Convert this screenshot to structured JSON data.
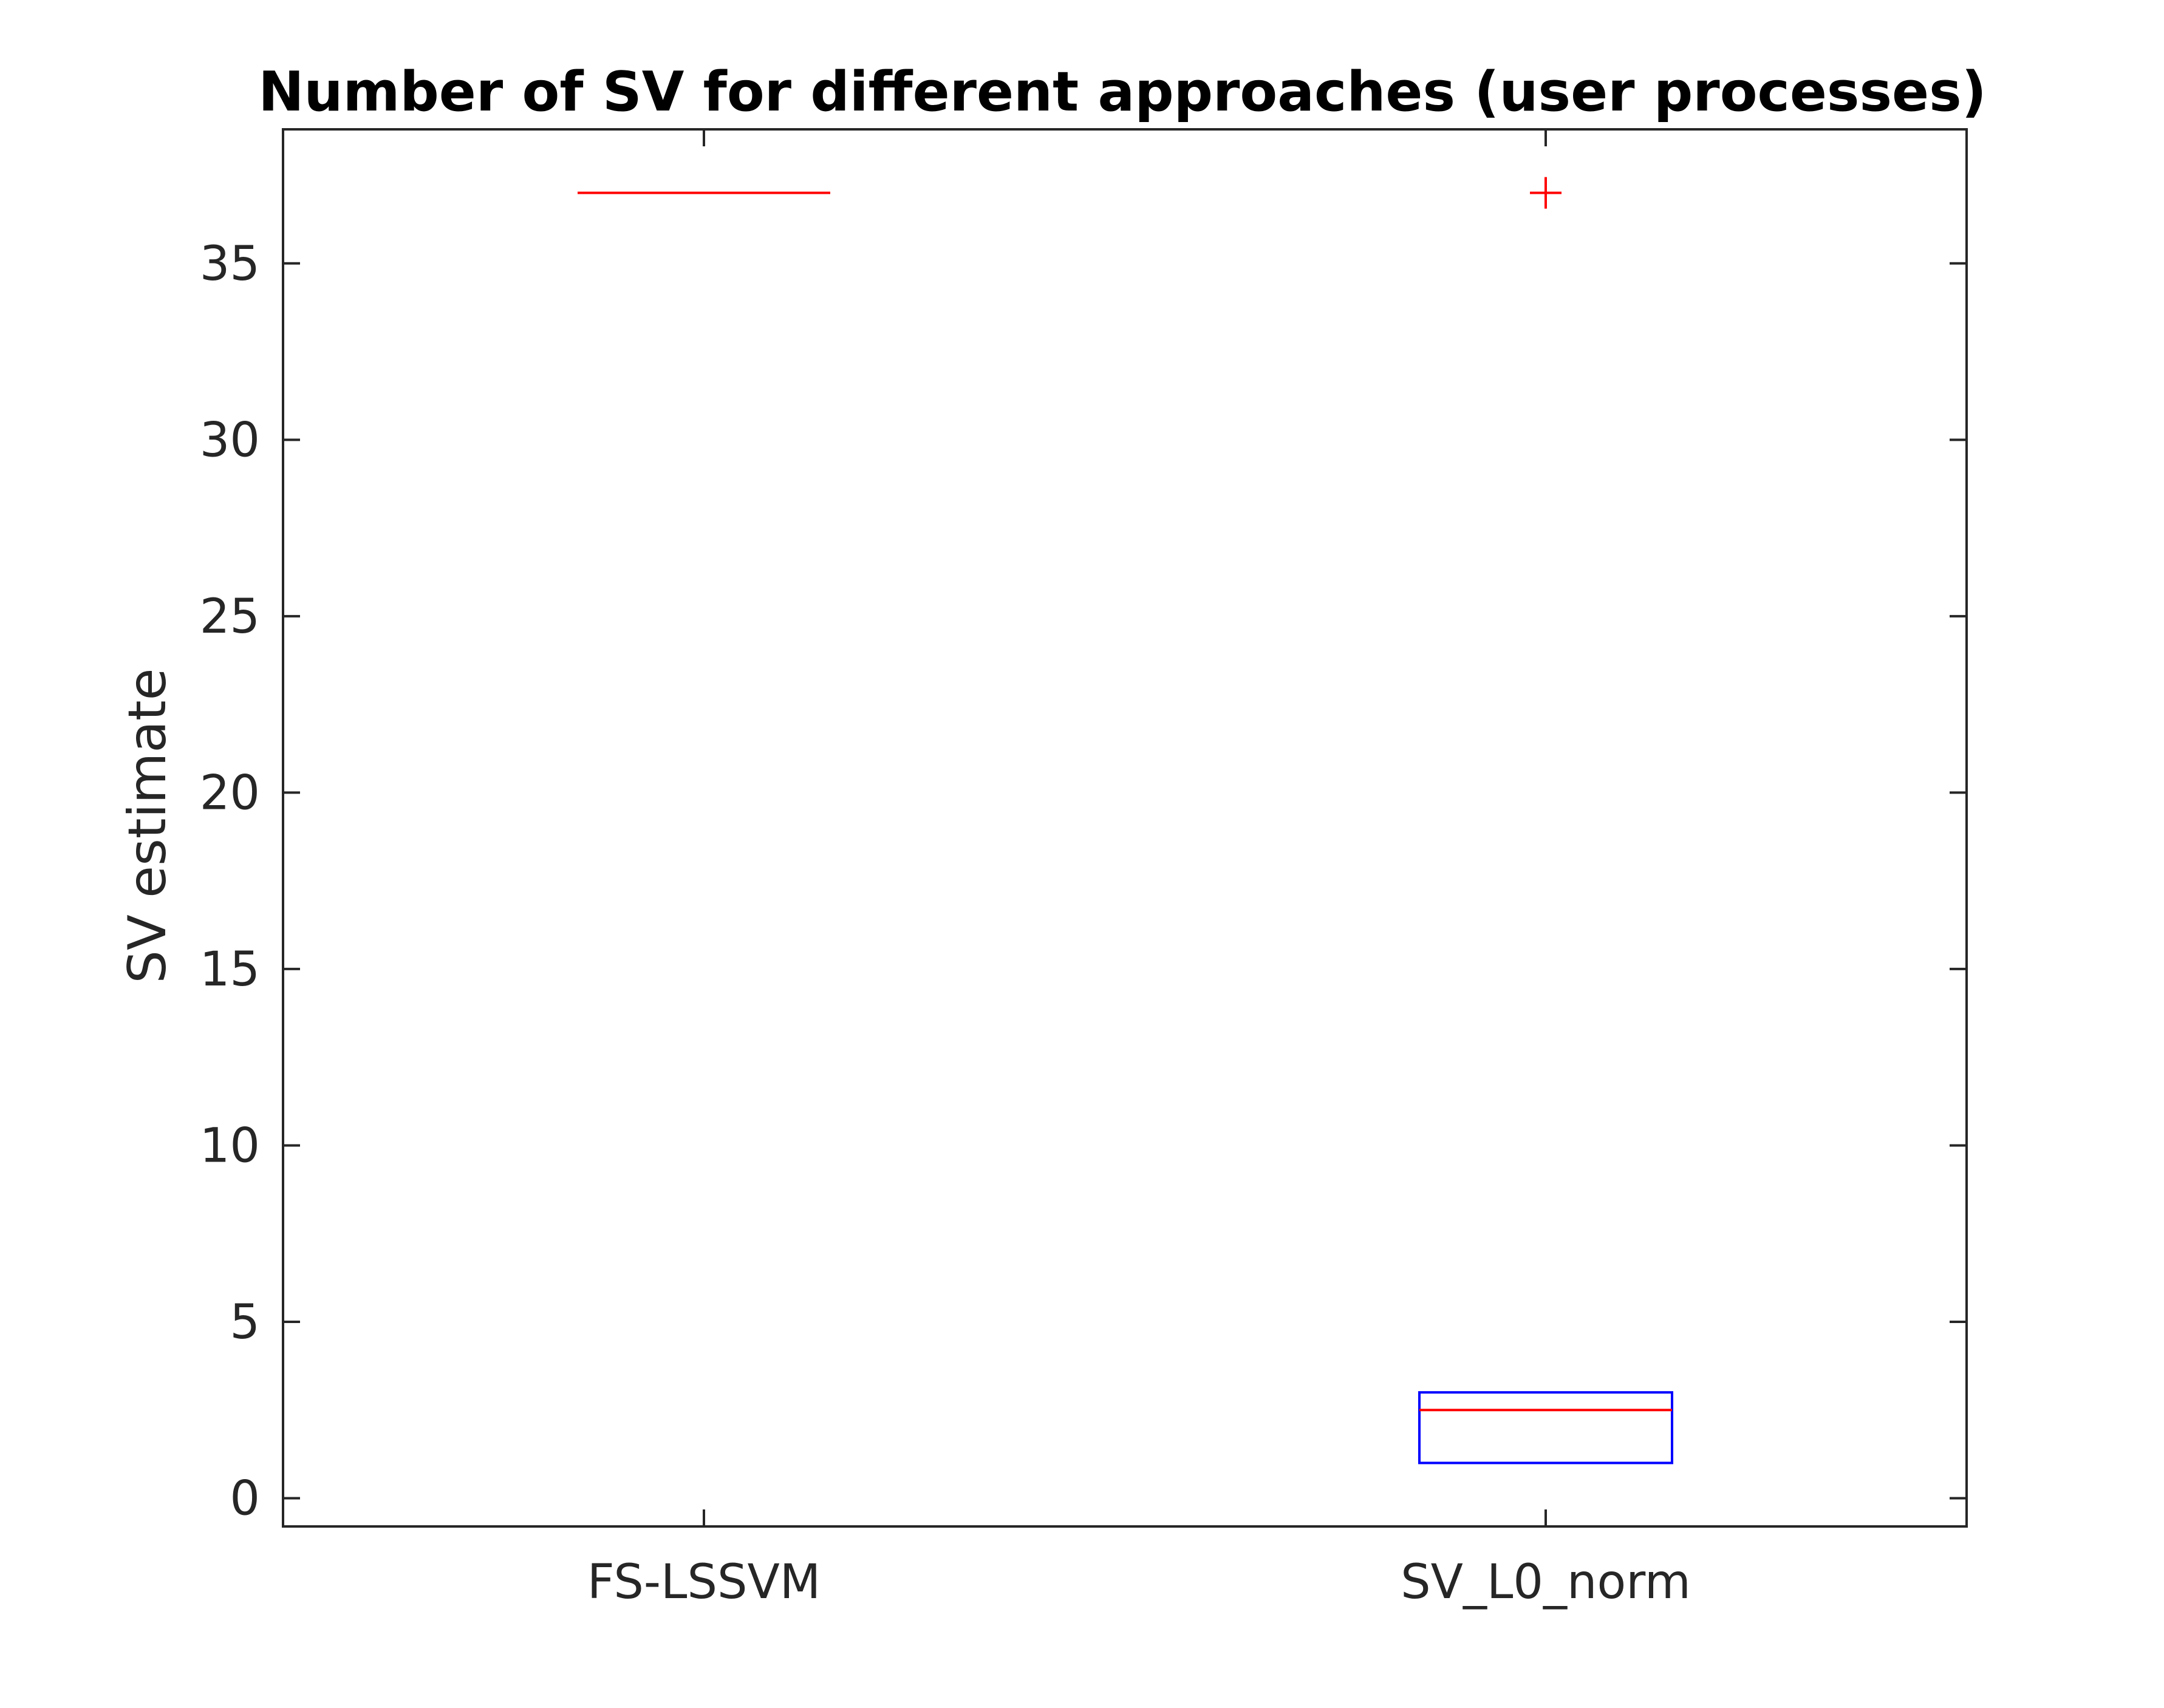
{
  "chart_data": {
    "type": "box",
    "title": "Number of SV for different approaches (user processes)",
    "xlabel": "",
    "ylabel": "SV estimate",
    "ylim": [
      -0.8,
      38.8
    ],
    "yticks": [
      0,
      5,
      10,
      15,
      20,
      25,
      30,
      35
    ],
    "grid": false,
    "categories": [
      "FS-LSSVM",
      "SV_L0_norm"
    ],
    "boxes": [
      {
        "category": "FS-LSSVM",
        "q1": 37,
        "median": 37,
        "q3": 37,
        "whisker_low": 37,
        "whisker_high": 37,
        "outliers": []
      },
      {
        "category": "SV_L0_norm",
        "q1": 1,
        "median": 2.5,
        "q3": 3,
        "whisker_low": 1,
        "whisker_high": 3,
        "outliers": [
          37
        ]
      }
    ],
    "colors": {
      "box": "#0000ff",
      "median": "#ff0000",
      "outlier": "#ff0000",
      "axis": "#262626"
    }
  }
}
